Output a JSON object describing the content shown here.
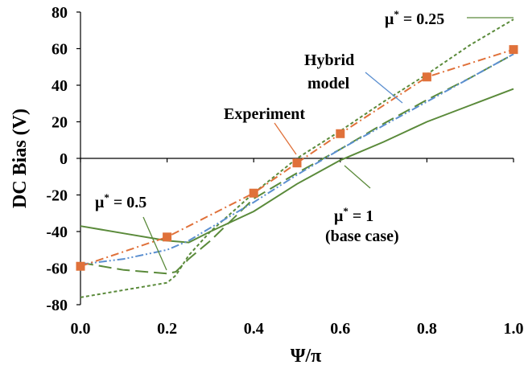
{
  "chart_data": {
    "type": "line",
    "xlabel": "Ψ/π",
    "ylabel": "DC Bias (V)",
    "xlim": [
      0.0,
      1.0
    ],
    "ylim": [
      -80,
      80
    ],
    "x_ticks": [
      "0.0",
      "0.2",
      "0.4",
      "0.6",
      "0.8",
      "1.0"
    ],
    "y_ticks": [
      "80",
      "60",
      "40",
      "20",
      "0",
      "-20",
      "-40",
      "-60",
      "-80"
    ],
    "grid": false,
    "legend": "none",
    "series": [
      {
        "name": "Experiment",
        "style": "dash-dot line with square markers",
        "color": "#e0713a",
        "x": [
          0.0,
          0.2,
          0.4,
          0.5,
          0.6,
          0.8,
          1.0
        ],
        "y": [
          -59,
          -43,
          -19,
          -2.5,
          13.5,
          44.5,
          59.5
        ]
      },
      {
        "name": "Hybrid model",
        "style": "dash-dot-dot line",
        "color": "#5b8fd0",
        "x": [
          0.0,
          0.1,
          0.2,
          0.25,
          0.3,
          0.4,
          0.5,
          0.6,
          0.7,
          0.8,
          0.9,
          1.0
        ],
        "y": [
          -58,
          -55,
          -50,
          -45,
          -38,
          -24,
          -9,
          5,
          18,
          31,
          44,
          57
        ]
      },
      {
        "name": "μ* = 1 (base case)",
        "style": "solid line",
        "color": "#5a8a3a",
        "x": [
          0.0,
          0.1,
          0.2,
          0.25,
          0.3,
          0.4,
          0.5,
          0.6,
          0.7,
          0.8,
          0.9,
          1.0
        ],
        "y": [
          -37,
          -41,
          -45,
          -46,
          -40,
          -29,
          -14,
          -1,
          9,
          20,
          29,
          38
        ]
      },
      {
        "name": "μ* = 0.5",
        "style": "long-dash line",
        "color": "#5a8a3a",
        "x": [
          0.0,
          0.1,
          0.2,
          0.22,
          0.25,
          0.3,
          0.4,
          0.5,
          0.6,
          0.7,
          0.8,
          0.9,
          1.0
        ],
        "y": [
          -57,
          -61,
          -63,
          -62,
          -55,
          -45,
          -22,
          -8,
          5,
          19,
          32,
          44,
          57
        ]
      },
      {
        "name": "μ* = 0.25",
        "style": "short-dash line",
        "color": "#5a8a3a",
        "x": [
          0.0,
          0.1,
          0.2,
          0.22,
          0.25,
          0.3,
          0.4,
          0.5,
          0.6,
          0.7,
          0.8,
          0.9,
          1.0
        ],
        "y": [
          -76,
          -72,
          -68,
          -64,
          -53,
          -40,
          -19,
          0,
          15,
          31,
          46,
          62,
          76
        ]
      }
    ],
    "annotations": [
      {
        "base": "μ",
        "sup": "*",
        "rest": " = 0.25"
      },
      {
        "base": "Hybrid",
        "sup": "",
        "rest": ""
      },
      {
        "base": "model",
        "sup": "",
        "rest": ""
      },
      {
        "base": "Experiment",
        "sup": "",
        "rest": ""
      },
      {
        "base": "μ",
        "sup": "*",
        "rest": " = 0.5"
      },
      {
        "base": "μ",
        "sup": "*",
        "rest": " = 1"
      },
      {
        "base": "(base case)",
        "sup": "",
        "rest": ""
      }
    ]
  }
}
